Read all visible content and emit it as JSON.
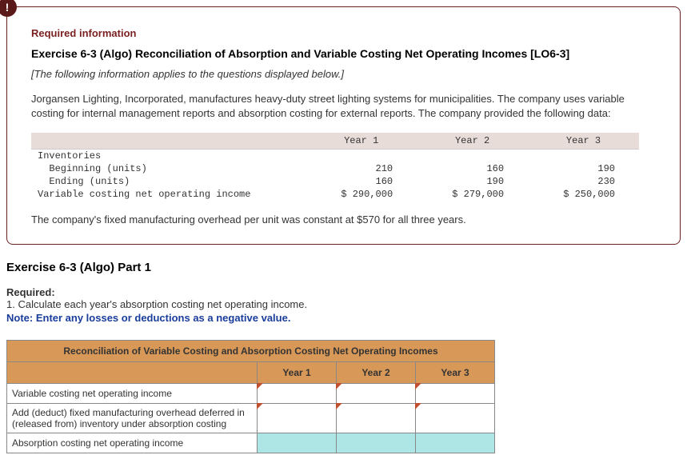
{
  "badge": "!",
  "box": {
    "required_label": "Required information",
    "exercise_title": "Exercise 6-3 (Algo) Reconciliation of Absorption and Variable Costing Net Operating Incomes [LO6-3]",
    "italic_intro": "[The following information applies to the questions displayed below.]",
    "body1": "Jorgansen Lighting, Incorporated, manufactures heavy-duty street lighting systems for municipalities. The company uses variable costing for internal management reports and absorption costing for external reports. The company provided the following data:",
    "body2": "The company's fixed manufacturing overhead per unit was constant at $570 for all three years."
  },
  "data_table": {
    "header_blank": "",
    "year_headers": [
      "Year 1",
      "Year 2",
      "Year 3"
    ],
    "rows": [
      {
        "label": "Inventories",
        "indent": 0,
        "vals": [
          "",
          "",
          ""
        ]
      },
      {
        "label": "Beginning (units)",
        "indent": 1,
        "vals": [
          "210",
          "160",
          "190"
        ]
      },
      {
        "label": "Ending (units)",
        "indent": 1,
        "vals": [
          "160",
          "190",
          "230"
        ]
      },
      {
        "label": "Variable costing net operating income",
        "indent": 0,
        "vals": [
          "$ 290,000",
          "$ 279,000",
          "$ 250,000"
        ]
      }
    ],
    "colors": {
      "header_bg": "#e8dcd8",
      "border": "#cccccc"
    }
  },
  "part": {
    "title": "Exercise 6-3 (Algo) Part 1",
    "required_label": "Required:",
    "instruction": "1. Calculate each year's absorption costing net operating income.",
    "note": "Note: Enter any losses or deductions as a negative value."
  },
  "recon": {
    "title": "Reconciliation of Variable Costing and Absorption Costing Net Operating Incomes",
    "year_headers": [
      "Year 1",
      "Year 2",
      "Year 3"
    ],
    "rows": [
      {
        "label": "Variable costing net operating income",
        "total": false
      },
      {
        "label": "Add (deduct) fixed manufacturing overhead deferred in (released from) inventory under absorption costing",
        "total": false
      },
      {
        "label": "Absorption costing net operating income",
        "total": true
      }
    ],
    "colors": {
      "header_bg": "#d89858",
      "total_bg": "#aee6e6",
      "tick": "#c05030",
      "border": "#888888"
    }
  }
}
